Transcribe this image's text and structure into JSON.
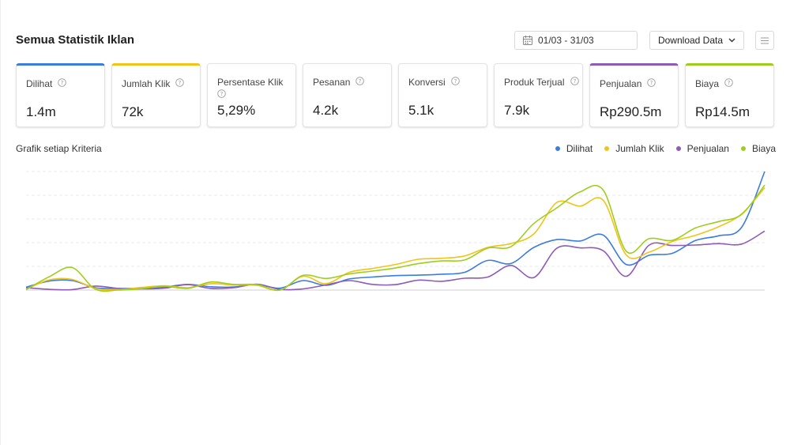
{
  "header": {
    "title": "Semua Statistik Iklan",
    "date_range": "01/03 - 31/03",
    "download_label": "Download Data"
  },
  "metrics": [
    {
      "label": "Dilihat",
      "value": "1.4m",
      "selected": true,
      "accent": "#3b7ddd"
    },
    {
      "label": "Jumlah Klik",
      "value": "72k",
      "selected": true,
      "accent": "#f0c419"
    },
    {
      "label": "Persentase Klik",
      "value": "5,29%",
      "selected": false
    },
    {
      "label": "Pesanan",
      "value": "4.2k",
      "selected": false
    },
    {
      "label": "Konversi",
      "value": "5.1k",
      "selected": false
    },
    {
      "label": "Produk Terjual",
      "value": "7.9k",
      "selected": false
    },
    {
      "label": "Penjualan",
      "value": "Rp290.5m",
      "selected": true,
      "accent": "#8e5bb7"
    },
    {
      "label": "Biaya",
      "value": "Rp14.5m",
      "selected": true,
      "accent": "#9fcd1e"
    }
  ],
  "chart_data": {
    "type": "line",
    "title": "Grafik setiap Kriteria",
    "legend_position": "top-right",
    "grid": true,
    "y_gridlines": 5,
    "series": [
      {
        "name": "Dilihat",
        "color": "#3b7ddd",
        "values": [
          12,
          38,
          40,
          10,
          7,
          8,
          13,
          24,
          14,
          13,
          24,
          8,
          40,
          20,
          47,
          55,
          61,
          63,
          67,
          75,
          125,
          112,
          180,
          213,
          207,
          232,
          108,
          147,
          155,
          209,
          229,
          265,
          500
        ]
      },
      {
        "name": "Jumlah Klik",
        "color": "#f0c419",
        "values": [
          3,
          43,
          45,
          7,
          2,
          11,
          18,
          10,
          27,
          21,
          20,
          0,
          58,
          27,
          75,
          91,
          108,
          130,
          134,
          144,
          180,
          196,
          237,
          370,
          354,
          379,
          148,
          160,
          205,
          231,
          267,
          321,
          432
        ]
      },
      {
        "name": "Penjualan",
        "color": "#8e5bb7",
        "values": [
          10,
          3,
          2,
          17,
          7,
          5,
          8,
          23,
          7,
          10,
          25,
          3,
          5,
          22,
          40,
          24,
          23,
          42,
          37,
          50,
          55,
          104,
          53,
          177,
          178,
          166,
          58,
          190,
          188,
          190,
          196,
          194,
          249
        ]
      },
      {
        "name": "Biaya",
        "color": "#9fcd1e",
        "values": [
          2,
          56,
          95,
          4,
          0,
          6,
          16,
          7,
          34,
          24,
          23,
          0,
          62,
          49,
          68,
          80,
          93,
          112,
          123,
          127,
          177,
          183,
          281,
          347,
          414,
          422,
          164,
          217,
          210,
          262,
          289,
          319,
          443
        ]
      }
    ]
  }
}
